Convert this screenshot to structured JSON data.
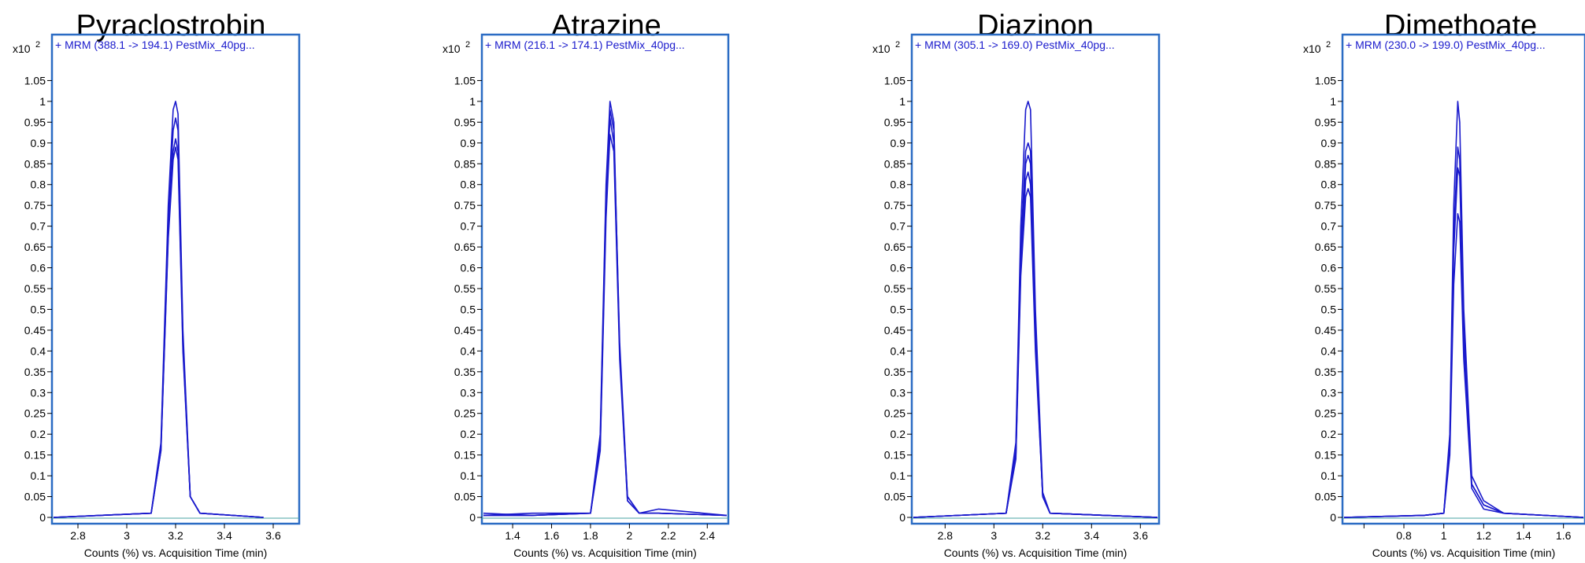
{
  "chart_data": [
    {
      "type": "line",
      "title": "Pyraclostrobin",
      "legend_text": "+ MRM (388.1 -> 194.1) PestMix_40pg...",
      "scale_label": "x10",
      "scale_exp": "2",
      "xlabel": "Counts (%) vs. Acquisition Time (min)",
      "ylabel": "",
      "xlim": [
        2.7,
        3.7
      ],
      "ylim": [
        0,
        1.1
      ],
      "xticks": [
        2.8,
        3.0,
        3.2,
        3.4,
        3.6
      ],
      "xtick_labels": [
        "2.8",
        "3",
        "3.2",
        "3.4",
        "3.6"
      ],
      "yticks": [
        0,
        0.05,
        0.1,
        0.15,
        0.2,
        0.25,
        0.3,
        0.35,
        0.4,
        0.45,
        0.5,
        0.55,
        0.6,
        0.65,
        0.7,
        0.75,
        0.8,
        0.85,
        0.9,
        0.95,
        1.0,
        1.05
      ],
      "ytick_labels": [
        "0",
        "0.05",
        "0.1",
        "0.15",
        "0.2",
        "0.25",
        "0.3",
        "0.35",
        "0.4",
        "0.45",
        "0.5",
        "0.55",
        "0.6",
        "0.65",
        "0.7",
        "0.75",
        "0.8",
        "0.85",
        "0.9",
        "0.95",
        "1",
        "1.05"
      ],
      "series": [
        {
          "x": [
            2.7,
            3.1,
            3.14,
            3.17,
            3.19,
            3.2,
            3.21,
            3.23,
            3.26,
            3.3,
            3.56
          ],
          "y": [
            0.0,
            0.01,
            0.18,
            0.75,
            0.98,
            1.0,
            0.97,
            0.45,
            0.05,
            0.01,
            0.0
          ]
        },
        {
          "x": [
            2.7,
            3.1,
            3.14,
            3.17,
            3.19,
            3.2,
            3.21,
            3.23,
            3.26,
            3.3,
            3.56
          ],
          "y": [
            0.0,
            0.01,
            0.17,
            0.72,
            0.93,
            0.96,
            0.93,
            0.43,
            0.05,
            0.01,
            0.0
          ]
        },
        {
          "x": [
            2.7,
            3.1,
            3.14,
            3.17,
            3.19,
            3.2,
            3.21,
            3.23,
            3.26,
            3.3,
            3.56
          ],
          "y": [
            0.0,
            0.01,
            0.16,
            0.68,
            0.88,
            0.91,
            0.88,
            0.41,
            0.05,
            0.01,
            0.0
          ]
        },
        {
          "x": [
            2.7,
            3.1,
            3.14,
            3.17,
            3.19,
            3.2,
            3.21,
            3.23,
            3.26,
            3.3,
            3.56
          ],
          "y": [
            0.0,
            0.01,
            0.16,
            0.67,
            0.86,
            0.89,
            0.86,
            0.4,
            0.05,
            0.01,
            0.0
          ]
        }
      ]
    },
    {
      "type": "line",
      "title": "Atrazine",
      "legend_text": "+ MRM (216.1 -> 174.1) PestMix_40pg...",
      "scale_label": "x10",
      "scale_exp": "2",
      "xlabel": "Counts (%) vs. Acquisition Time (min)",
      "ylabel": "",
      "xlim": [
        1.25,
        2.5
      ],
      "ylim": [
        0,
        1.1
      ],
      "xticks": [
        1.4,
        1.6,
        1.8,
        2.0,
        2.2,
        2.4
      ],
      "xtick_labels": [
        "1.4",
        "1.6",
        "1.8",
        "2",
        "2.2",
        "2.4"
      ],
      "yticks": [
        0,
        0.05,
        0.1,
        0.15,
        0.2,
        0.25,
        0.3,
        0.35,
        0.4,
        0.45,
        0.5,
        0.55,
        0.6,
        0.65,
        0.7,
        0.75,
        0.8,
        0.85,
        0.9,
        0.95,
        1.0,
        1.05
      ],
      "ytick_labels": [
        "0",
        "0.05",
        "0.1",
        "0.15",
        "0.2",
        "0.25",
        "0.3",
        "0.35",
        "0.4",
        "0.45",
        "0.5",
        "0.55",
        "0.6",
        "0.65",
        "0.7",
        "0.75",
        "0.8",
        "0.85",
        "0.9",
        "0.95",
        "1",
        "1.05"
      ],
      "series": [
        {
          "x": [
            1.25,
            1.5,
            1.8,
            1.85,
            1.88,
            1.9,
            1.92,
            1.95,
            1.99,
            2.05,
            2.15,
            2.5
          ],
          "y": [
            0.01,
            0.005,
            0.01,
            0.2,
            0.8,
            1.0,
            0.95,
            0.4,
            0.04,
            0.01,
            0.02,
            0.005
          ]
        },
        {
          "x": [
            1.25,
            1.5,
            1.8,
            1.85,
            1.88,
            1.9,
            1.92,
            1.95,
            1.99,
            2.05,
            2.15,
            2.5
          ],
          "y": [
            0.005,
            0.01,
            0.01,
            0.18,
            0.78,
            0.98,
            0.93,
            0.42,
            0.05,
            0.01,
            0.01,
            0.005
          ]
        },
        {
          "x": [
            1.25,
            1.5,
            1.8,
            1.85,
            1.88,
            1.9,
            1.92,
            1.95,
            1.99,
            2.05,
            2.15,
            2.5
          ],
          "y": [
            0.005,
            0.005,
            0.01,
            0.17,
            0.75,
            0.96,
            0.9,
            0.4,
            0.05,
            0.01,
            0.01,
            0.005
          ]
        },
        {
          "x": [
            1.25,
            1.5,
            1.8,
            1.85,
            1.88,
            1.9,
            1.92,
            1.95,
            1.99,
            2.05,
            2.15,
            2.5
          ],
          "y": [
            0.005,
            0.005,
            0.01,
            0.16,
            0.72,
            0.92,
            0.88,
            0.38,
            0.04,
            0.01,
            0.01,
            0.005
          ]
        }
      ]
    },
    {
      "type": "line",
      "title": "Diazinon",
      "legend_text": "+ MRM (305.1 -> 169.0) PestMix_40pg...",
      "scale_label": "x10",
      "scale_exp": "2",
      "xlabel": "Counts (%) vs. Acquisition Time (min)",
      "ylabel": "",
      "xlim": [
        2.67,
        3.67
      ],
      "ylim": [
        0,
        1.1
      ],
      "xticks": [
        2.8,
        3.0,
        3.2,
        3.4,
        3.6
      ],
      "xtick_labels": [
        "2.8",
        "3",
        "3.2",
        "3.4",
        "3.6"
      ],
      "yticks": [
        0,
        0.05,
        0.1,
        0.15,
        0.2,
        0.25,
        0.3,
        0.35,
        0.4,
        0.45,
        0.5,
        0.55,
        0.6,
        0.65,
        0.7,
        0.75,
        0.8,
        0.85,
        0.9,
        0.95,
        1.0,
        1.05
      ],
      "ytick_labels": [
        "0",
        "0.05",
        "0.1",
        "0.15",
        "0.2",
        "0.25",
        "0.3",
        "0.35",
        "0.4",
        "0.45",
        "0.5",
        "0.55",
        "0.6",
        "0.65",
        "0.7",
        "0.75",
        "0.8",
        "0.85",
        "0.9",
        "0.95",
        "1",
        "1.05"
      ],
      "series": [
        {
          "x": [
            2.67,
            3.05,
            3.09,
            3.11,
            3.13,
            3.14,
            3.15,
            3.17,
            3.2,
            3.23,
            3.67
          ],
          "y": [
            0.0,
            0.01,
            0.18,
            0.7,
            0.98,
            1.0,
            0.98,
            0.5,
            0.06,
            0.01,
            0.0
          ]
        },
        {
          "x": [
            2.67,
            3.05,
            3.09,
            3.11,
            3.13,
            3.14,
            3.15,
            3.17,
            3.2,
            3.23,
            3.67
          ],
          "y": [
            0.0,
            0.01,
            0.16,
            0.65,
            0.88,
            0.9,
            0.88,
            0.45,
            0.05,
            0.01,
            0.0
          ]
        },
        {
          "x": [
            2.67,
            3.05,
            3.09,
            3.11,
            3.13,
            3.14,
            3.15,
            3.17,
            3.2,
            3.23,
            3.67
          ],
          "y": [
            0.0,
            0.01,
            0.15,
            0.62,
            0.85,
            0.87,
            0.85,
            0.43,
            0.05,
            0.01,
            0.0
          ]
        },
        {
          "x": [
            2.67,
            3.05,
            3.09,
            3.11,
            3.13,
            3.14,
            3.15,
            3.17,
            3.2,
            3.23,
            3.67
          ],
          "y": [
            0.0,
            0.01,
            0.15,
            0.6,
            0.81,
            0.83,
            0.8,
            0.42,
            0.05,
            0.01,
            0.0
          ]
        },
        {
          "x": [
            2.67,
            3.05,
            3.09,
            3.11,
            3.13,
            3.14,
            3.15,
            3.17,
            3.2,
            3.23,
            3.67
          ],
          "y": [
            0.0,
            0.01,
            0.14,
            0.58,
            0.77,
            0.79,
            0.77,
            0.4,
            0.05,
            0.01,
            0.0
          ]
        }
      ]
    },
    {
      "type": "line",
      "title": "Dimethoate",
      "legend_text": "+ MRM (230.0 -> 199.0) PestMix_40pg...",
      "scale_label": "x10",
      "scale_exp": "2",
      "xlabel": "Counts (%) vs. Acquisition Time (min)",
      "ylabel": "",
      "xlim": [
        0.5,
        1.7
      ],
      "ylim": [
        0,
        1.1
      ],
      "xticks": [
        0.6,
        0.8,
        1.0,
        1.2,
        1.4,
        1.6
      ],
      "xtick_labels": [
        "",
        "0.8",
        "1",
        "1.2",
        "1.4",
        "1.6"
      ],
      "yticks": [
        0,
        0.05,
        0.1,
        0.15,
        0.2,
        0.25,
        0.3,
        0.35,
        0.4,
        0.45,
        0.5,
        0.55,
        0.6,
        0.65,
        0.7,
        0.75,
        0.8,
        0.85,
        0.9,
        0.95,
        1.0,
        1.05
      ],
      "ytick_labels": [
        "0",
        "0.05",
        "0.1",
        "0.15",
        "0.2",
        "0.25",
        "0.3",
        "0.35",
        "0.4",
        "0.45",
        "0.5",
        "0.55",
        "0.6",
        "0.65",
        "0.7",
        "0.75",
        "0.8",
        "0.85",
        "0.9",
        "0.95",
        "1",
        "1.05"
      ],
      "series": [
        {
          "x": [
            0.5,
            0.9,
            1.0,
            1.03,
            1.05,
            1.07,
            1.08,
            1.1,
            1.14,
            1.2,
            1.3,
            1.7
          ],
          "y": [
            0.0,
            0.005,
            0.01,
            0.2,
            0.75,
            1.0,
            0.95,
            0.5,
            0.1,
            0.04,
            0.01,
            0.0
          ]
        },
        {
          "x": [
            0.5,
            0.9,
            1.0,
            1.03,
            1.05,
            1.07,
            1.08,
            1.1,
            1.14,
            1.2,
            1.3,
            1.7
          ],
          "y": [
            0.0,
            0.005,
            0.01,
            0.18,
            0.68,
            0.89,
            0.86,
            0.45,
            0.08,
            0.03,
            0.01,
            0.0
          ]
        },
        {
          "x": [
            0.5,
            0.9,
            1.0,
            1.03,
            1.05,
            1.07,
            1.08,
            1.1,
            1.14,
            1.2,
            1.3,
            1.7
          ],
          "y": [
            0.0,
            0.005,
            0.01,
            0.17,
            0.64,
            0.84,
            0.82,
            0.43,
            0.08,
            0.03,
            0.01,
            0.0
          ]
        },
        {
          "x": [
            0.5,
            0.9,
            1.0,
            1.03,
            1.05,
            1.07,
            1.08,
            1.1,
            1.14,
            1.2,
            1.3,
            1.7
          ],
          "y": [
            0.0,
            0.005,
            0.01,
            0.15,
            0.56,
            0.73,
            0.71,
            0.38,
            0.07,
            0.02,
            0.01,
            0.0
          ]
        }
      ]
    }
  ],
  "colors": {
    "line": "#1a1acc",
    "frame": "#2b6cc4",
    "legend_text": "#1a1acc",
    "text": "#000000",
    "baseline": "#4aa3a3"
  }
}
